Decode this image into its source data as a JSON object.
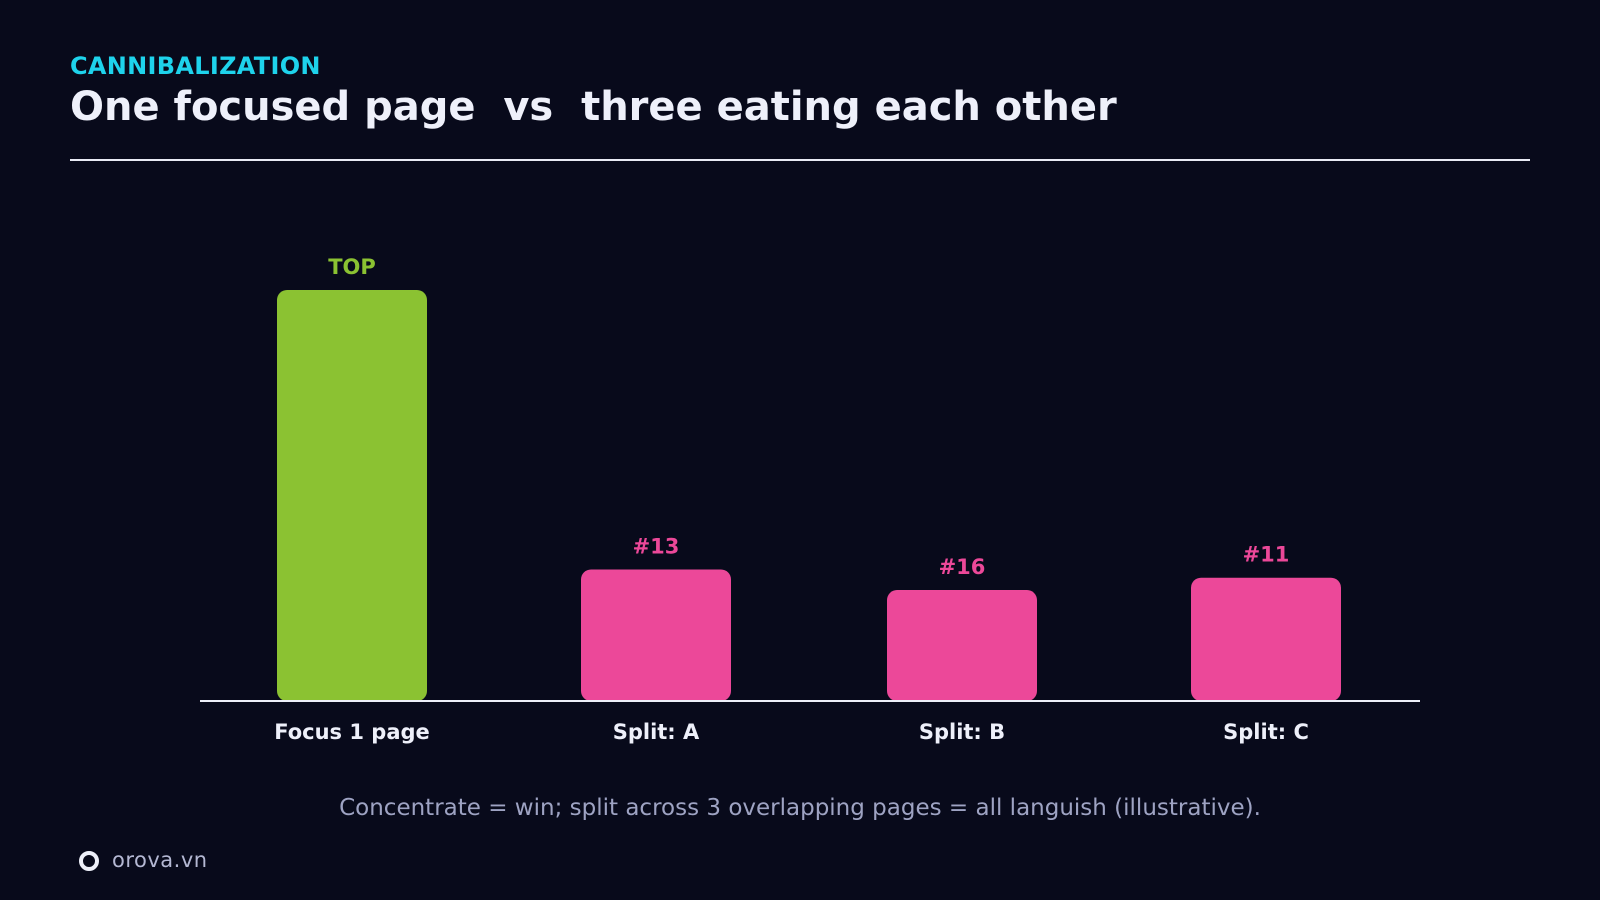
{
  "header": {
    "kicker": "CANNIBALIZATION",
    "title": "One focused page  vs  three eating each other"
  },
  "chart_data": {
    "type": "bar",
    "categories": [
      "Focus 1 page",
      "Split: A",
      "Split: B",
      "Split: C"
    ],
    "values": [
      10,
      3.2,
      2.7,
      3.0
    ],
    "data_labels": [
      "TOP",
      "#13",
      "#16",
      "#11"
    ],
    "colors": [
      "#8bc232",
      "#ec4899",
      "#ec4899",
      "#ec4899"
    ],
    "label_colors": [
      "#8bc232",
      "#ec4899",
      "#ec4899",
      "#ec4899"
    ],
    "ylim": [
      0,
      10
    ],
    "grid": false,
    "legend": "none",
    "xlabel": "",
    "ylabel": ""
  },
  "caption": "Concentrate = win; split across 3 overlapping pages = all languish (illustrative).",
  "footer": {
    "brand": "orova.vn",
    "logo_icon": "ring-logo-icon"
  }
}
